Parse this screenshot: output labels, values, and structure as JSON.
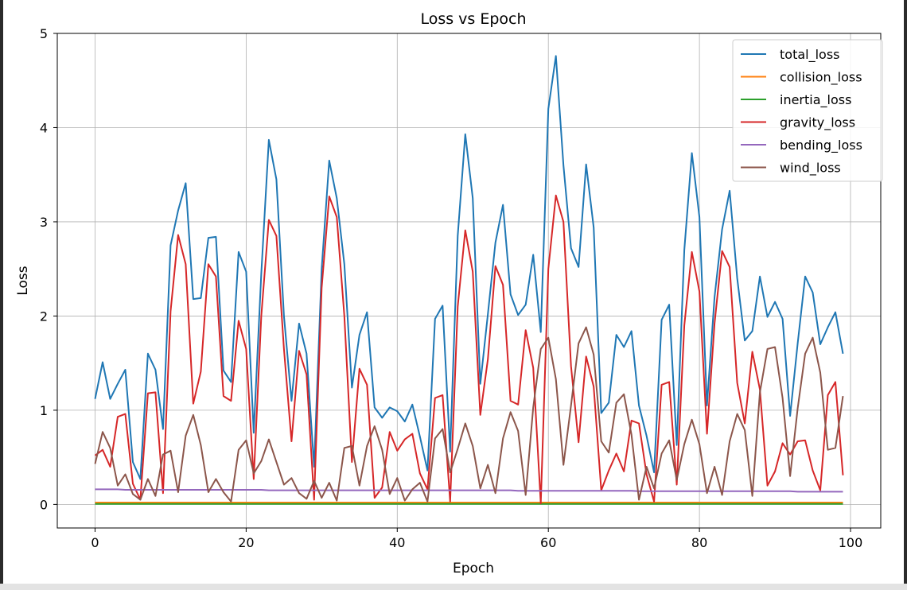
{
  "chart_data": {
    "type": "line",
    "title": "Loss vs Epoch",
    "xlabel": "Epoch",
    "ylabel": "Loss",
    "xlim": [
      -5,
      104
    ],
    "ylim": [
      -0.25,
      5
    ],
    "xticks": [
      0,
      20,
      40,
      60,
      80,
      100
    ],
    "yticks": [
      0,
      1,
      2,
      3,
      4,
      5
    ],
    "grid": true,
    "legend_position": "top-right",
    "x": [
      0,
      1,
      2,
      3,
      4,
      5,
      6,
      7,
      8,
      9,
      10,
      11,
      12,
      13,
      14,
      15,
      16,
      17,
      18,
      19,
      20,
      21,
      22,
      23,
      24,
      25,
      26,
      27,
      28,
      29,
      30,
      31,
      32,
      33,
      34,
      35,
      36,
      37,
      38,
      39,
      40,
      41,
      42,
      43,
      44,
      45,
      46,
      47,
      48,
      49,
      50,
      51,
      52,
      53,
      54,
      55,
      56,
      57,
      58,
      59,
      60,
      61,
      62,
      63,
      64,
      65,
      66,
      67,
      68,
      69,
      70,
      71,
      72,
      73,
      74,
      75,
      76,
      77,
      78,
      79,
      80,
      81,
      82,
      83,
      84,
      85,
      86,
      87,
      88,
      89,
      90,
      91,
      92,
      93,
      94,
      95,
      96,
      97,
      98,
      99
    ],
    "series": [
      {
        "name": "total_loss",
        "color": "#1f77b4",
        "values": [
          1.12,
          1.51,
          1.12,
          1.28,
          1.43,
          0.45,
          0.27,
          1.6,
          1.43,
          0.8,
          2.75,
          3.12,
          3.41,
          2.18,
          2.19,
          2.83,
          2.84,
          1.42,
          1.3,
          2.68,
          2.47,
          0.76,
          2.45,
          3.87,
          3.45,
          2.0,
          1.1,
          1.92,
          1.6,
          0.4,
          2.5,
          3.65,
          3.25,
          2.55,
          1.24,
          1.8,
          2.04,
          1.03,
          0.92,
          1.03,
          0.99,
          0.88,
          1.06,
          0.72,
          0.36,
          1.97,
          2.11,
          0.56,
          2.85,
          3.93,
          3.25,
          1.28,
          2.02,
          2.78,
          3.18,
          2.23,
          2.01,
          2.12,
          2.65,
          1.83,
          4.2,
          4.76,
          3.6,
          2.72,
          2.52,
          3.61,
          2.94,
          0.97,
          1.08,
          1.8,
          1.67,
          1.84,
          1.05,
          0.73,
          0.34,
          1.96,
          2.12,
          0.63,
          2.7,
          3.73,
          3.05,
          1.05,
          2.2,
          2.92,
          3.33,
          2.4,
          1.74,
          1.84,
          2.42,
          1.99,
          2.15,
          1.97,
          0.94,
          1.71,
          2.42,
          2.25,
          1.7,
          1.88,
          2.04,
          1.6
        ]
      },
      {
        "name": "collision_loss",
        "color": "#ff7f0e",
        "values": [
          0.02,
          0.02,
          0.02,
          0.02,
          0.02,
          0.02,
          0.02,
          0.02,
          0.02,
          0.02,
          0.02,
          0.02,
          0.02,
          0.02,
          0.02,
          0.02,
          0.02,
          0.02,
          0.02,
          0.02,
          0.02,
          0.02,
          0.02,
          0.02,
          0.02,
          0.02,
          0.02,
          0.02,
          0.02,
          0.02,
          0.02,
          0.02,
          0.02,
          0.02,
          0.02,
          0.02,
          0.02,
          0.02,
          0.02,
          0.02,
          0.02,
          0.02,
          0.02,
          0.02,
          0.02,
          0.02,
          0.02,
          0.02,
          0.02,
          0.02,
          0.02,
          0.02,
          0.02,
          0.02,
          0.02,
          0.02,
          0.02,
          0.02,
          0.02,
          0.02,
          0.02,
          0.02,
          0.02,
          0.02,
          0.02,
          0.02,
          0.02,
          0.02,
          0.02,
          0.02,
          0.02,
          0.02,
          0.02,
          0.02,
          0.02,
          0.02,
          0.02,
          0.02,
          0.02,
          0.02,
          0.02,
          0.02,
          0.02,
          0.02,
          0.02,
          0.02,
          0.02,
          0.02,
          0.02,
          0.02,
          0.02,
          0.02,
          0.02,
          0.02,
          0.02,
          0.02,
          0.02,
          0.02,
          0.02,
          0.02
        ]
      },
      {
        "name": "inertia_loss",
        "color": "#2ca02c",
        "values": [
          0.005,
          0.005,
          0.005,
          0.005,
          0.005,
          0.005,
          0.005,
          0.005,
          0.005,
          0.005,
          0.005,
          0.005,
          0.005,
          0.005,
          0.005,
          0.005,
          0.005,
          0.005,
          0.005,
          0.005,
          0.005,
          0.005,
          0.005,
          0.005,
          0.005,
          0.005,
          0.005,
          0.005,
          0.005,
          0.005,
          0.005,
          0.005,
          0.005,
          0.005,
          0.005,
          0.005,
          0.005,
          0.005,
          0.005,
          0.005,
          0.005,
          0.005,
          0.005,
          0.005,
          0.005,
          0.005,
          0.005,
          0.005,
          0.005,
          0.005,
          0.005,
          0.005,
          0.005,
          0.005,
          0.005,
          0.005,
          0.005,
          0.005,
          0.005,
          0.005,
          0.005,
          0.005,
          0.005,
          0.005,
          0.005,
          0.005,
          0.005,
          0.005,
          0.005,
          0.005,
          0.005,
          0.005,
          0.005,
          0.005,
          0.005,
          0.005,
          0.005,
          0.005,
          0.005,
          0.005,
          0.005,
          0.005,
          0.005,
          0.005,
          0.005,
          0.005,
          0.005,
          0.005,
          0.005,
          0.005,
          0.005,
          0.005,
          0.005,
          0.005,
          0.005,
          0.005,
          0.005,
          0.005,
          0.005,
          0.005
        ]
      },
      {
        "name": "gravity_loss",
        "color": "#d62728",
        "values": [
          0.52,
          0.58,
          0.4,
          0.93,
          0.96,
          0.22,
          0.05,
          1.18,
          1.19,
          0.12,
          2.05,
          2.86,
          2.55,
          1.07,
          1.41,
          2.55,
          2.42,
          1.15,
          1.1,
          1.95,
          1.65,
          0.27,
          2.0,
          3.02,
          2.85,
          1.65,
          0.67,
          1.63,
          1.38,
          0.05,
          2.3,
          3.27,
          3.05,
          2.0,
          0.45,
          1.44,
          1.27,
          0.07,
          0.18,
          0.77,
          0.57,
          0.69,
          0.75,
          0.33,
          0.16,
          1.13,
          1.16,
          0.03,
          2.1,
          2.91,
          2.47,
          0.95,
          1.54,
          2.53,
          2.33,
          1.1,
          1.06,
          1.85,
          1.45,
          0.01,
          2.5,
          3.28,
          3.0,
          1.47,
          0.66,
          1.57,
          1.25,
          0.15,
          0.36,
          0.54,
          0.35,
          0.89,
          0.86,
          0.32,
          0.03,
          1.27,
          1.3,
          0.21,
          1.9,
          2.68,
          2.26,
          0.75,
          1.92,
          2.69,
          2.52,
          1.29,
          0.86,
          1.62,
          1.22,
          0.2,
          0.35,
          0.65,
          0.53,
          0.67,
          0.68,
          0.36,
          0.15,
          1.16,
          1.3,
          0.31
        ]
      },
      {
        "name": "bending_loss",
        "color": "#9467bd",
        "values": [
          0.16,
          0.16,
          0.16,
          0.16,
          0.155,
          0.155,
          0.155,
          0.155,
          0.155,
          0.155,
          0.155,
          0.155,
          0.155,
          0.155,
          0.155,
          0.155,
          0.155,
          0.155,
          0.155,
          0.155,
          0.155,
          0.155,
          0.155,
          0.15,
          0.15,
          0.15,
          0.15,
          0.15,
          0.15,
          0.15,
          0.15,
          0.15,
          0.15,
          0.15,
          0.15,
          0.15,
          0.15,
          0.15,
          0.15,
          0.15,
          0.15,
          0.15,
          0.15,
          0.15,
          0.15,
          0.15,
          0.15,
          0.15,
          0.15,
          0.15,
          0.15,
          0.15,
          0.15,
          0.15,
          0.15,
          0.15,
          0.145,
          0.145,
          0.145,
          0.145,
          0.145,
          0.145,
          0.145,
          0.145,
          0.145,
          0.145,
          0.145,
          0.145,
          0.145,
          0.145,
          0.145,
          0.145,
          0.14,
          0.14,
          0.14,
          0.14,
          0.14,
          0.14,
          0.14,
          0.14,
          0.14,
          0.14,
          0.14,
          0.14,
          0.14,
          0.14,
          0.14,
          0.14,
          0.14,
          0.14,
          0.14,
          0.14,
          0.14,
          0.135,
          0.135,
          0.135,
          0.135,
          0.135,
          0.135,
          0.135
        ]
      },
      {
        "name": "wind_loss",
        "color": "#8c564b",
        "values": [
          0.43,
          0.77,
          0.6,
          0.2,
          0.32,
          0.11,
          0.05,
          0.27,
          0.09,
          0.53,
          0.57,
          0.13,
          0.73,
          0.95,
          0.63,
          0.13,
          0.27,
          0.13,
          0.03,
          0.58,
          0.68,
          0.33,
          0.46,
          0.69,
          0.45,
          0.21,
          0.28,
          0.12,
          0.06,
          0.25,
          0.07,
          0.23,
          0.04,
          0.6,
          0.62,
          0.2,
          0.62,
          0.83,
          0.58,
          0.11,
          0.28,
          0.04,
          0.16,
          0.23,
          0.03,
          0.7,
          0.8,
          0.34,
          0.59,
          0.86,
          0.62,
          0.17,
          0.42,
          0.12,
          0.7,
          0.98,
          0.78,
          0.1,
          1.03,
          1.65,
          1.77,
          1.33,
          0.42,
          1.05,
          1.71,
          1.88,
          1.59,
          0.67,
          0.55,
          1.08,
          1.17,
          0.74,
          0.05,
          0.4,
          0.17,
          0.54,
          0.68,
          0.26,
          0.64,
          0.9,
          0.64,
          0.12,
          0.4,
          0.1,
          0.67,
          0.96,
          0.79,
          0.09,
          1.19,
          1.65,
          1.67,
          1.13,
          0.3,
          1.02,
          1.6,
          1.77,
          1.4,
          0.58,
          0.6,
          1.15
        ]
      }
    ]
  }
}
